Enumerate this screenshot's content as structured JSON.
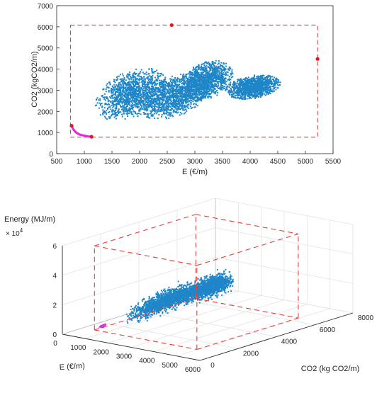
{
  "chart_data": [
    {
      "type": "scatter",
      "xlabel": "E (€/m)",
      "ylabel": "CO2 (kgCO2/m)",
      "xlim": [
        500,
        5500
      ],
      "ylim": [
        0,
        7000
      ],
      "x_ticks": [
        "500",
        "1000",
        "1500",
        "2000",
        "2500",
        "3000",
        "3500",
        "4000",
        "4500",
        "5000",
        "5500"
      ],
      "y_ticks": [
        "0",
        "1000",
        "2000",
        "3000",
        "4000",
        "5000",
        "6000",
        "7000"
      ],
      "grid": false,
      "colors": {
        "cloud": "#1f86c8",
        "front": "#e62bd8",
        "bounds": "#e8403a",
        "points": "#e01a1a"
      },
      "clusters": [
        {
          "cx": 1850,
          "cy": 2800,
          "rx": 650,
          "ry": 1150,
          "tilt": 1.25
        },
        {
          "cx": 2600,
          "cy": 2700,
          "rx": 650,
          "ry": 1000,
          "tilt": 1.05
        },
        {
          "cx": 3200,
          "cy": 3450,
          "rx": 500,
          "ry": 900,
          "tilt": 1.1
        },
        {
          "cx": 4050,
          "cy": 3150,
          "rx": 500,
          "ry": 550,
          "tilt": 0.6
        }
      ],
      "front": [
        [
          770,
          1320
        ],
        [
          800,
          1150
        ],
        [
          850,
          1000
        ],
        [
          920,
          900
        ],
        [
          1000,
          850
        ],
        [
          1080,
          810
        ],
        [
          1130,
          800
        ]
      ],
      "extreme_points": [
        [
          770,
          1320
        ],
        [
          1130,
          800
        ],
        [
          2580,
          6080
        ],
        [
          5220,
          4480
        ]
      ],
      "bounds": {
        "x": [
          750,
          5220
        ],
        "y": [
          780,
          6080
        ]
      }
    },
    {
      "type": "scatter3d",
      "xlabel": "E (€/m)",
      "ylabel": "CO2 (kg CO2/m)",
      "zlabel": "Energy (MJ/m)",
      "z_exponent": "× 10",
      "z_exponent_power": "4",
      "xlim": [
        0,
        6000
      ],
      "ylim": [
        0,
        8000
      ],
      "zlim": [
        0,
        6
      ],
      "x_ticks": [
        "0",
        "1000",
        "2000",
        "3000",
        "4000",
        "5000",
        "6000"
      ],
      "y_ticks": [
        "0",
        "2000",
        "4000",
        "6000",
        "8000"
      ],
      "z_ticks": [
        "0",
        "2",
        "4",
        "6"
      ],
      "grid": true,
      "colors": {
        "cloud": "#1f86c8",
        "front": "#e62bd8",
        "bounds": "#e8403a"
      },
      "bounds": {
        "x": [
          750,
          5220
        ],
        "y": [
          780,
          6080
        ],
        "z": [
          0.2,
          5.9
        ]
      }
    }
  ]
}
